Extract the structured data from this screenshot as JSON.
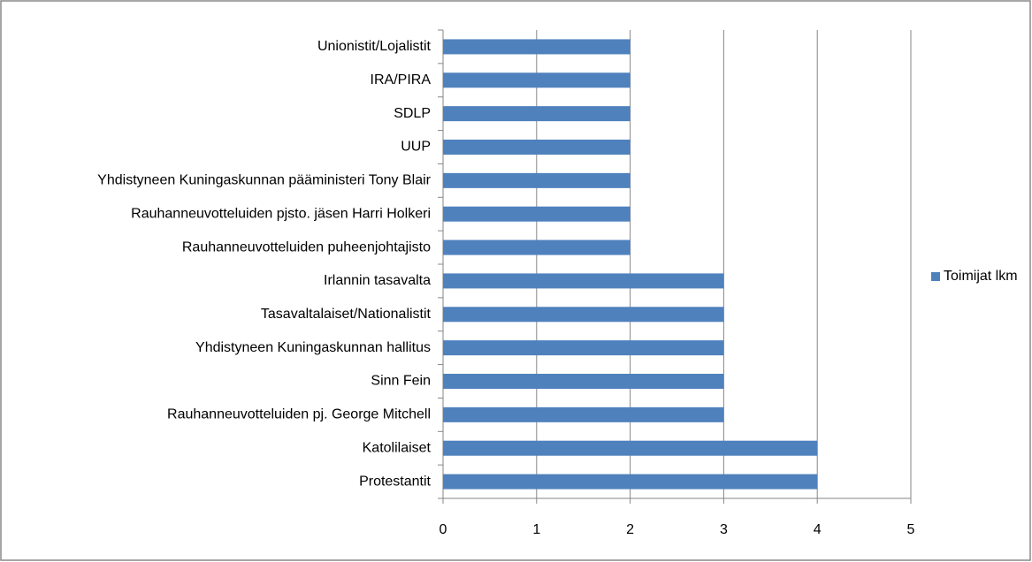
{
  "chart_data": {
    "type": "bar",
    "orientation": "horizontal",
    "categories": [
      "Unionistit/Lojalistit",
      "IRA/PIRA",
      "SDLP",
      "UUP",
      "Yhdistyneen Kuningaskunnan pääministeri Tony Blair",
      "Rauhanneuvotteluiden pjsto. jäsen Harri Holkeri",
      "Rauhanneuvotteluiden puheenjohtajisto",
      "Irlannin tasavalta",
      "Tasavaltalaiset/Nationalistit",
      "Yhdistyneen Kuningaskunnan hallitus",
      "Sinn Fein",
      "Rauhanneuvotteluiden pj. George Mitchell",
      "Katolilaiset",
      "Protestantit"
    ],
    "series": [
      {
        "name": "Toimijat lkm",
        "color": "#4f81bd",
        "values": [
          2,
          2,
          2,
          2,
          2,
          2,
          2,
          3,
          3,
          3,
          3,
          3,
          4,
          4
        ]
      }
    ],
    "xlim": [
      0,
      5
    ],
    "xticks": [
      0,
      1,
      2,
      3,
      4,
      5
    ],
    "grid": true,
    "legend": "right"
  }
}
